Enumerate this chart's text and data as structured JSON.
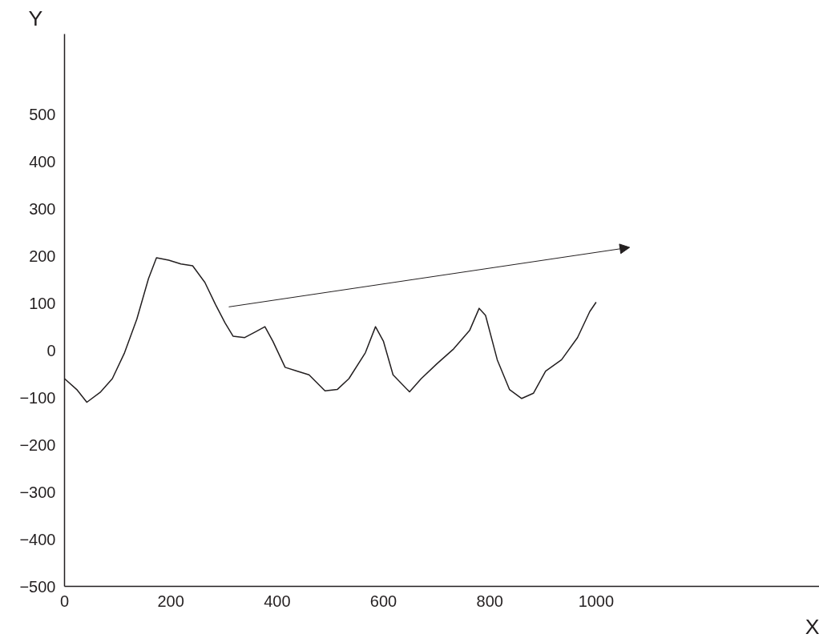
{
  "chart_data": {
    "type": "line",
    "xlabel": "X",
    "ylabel": "Y",
    "x": [
      0,
      23,
      42,
      68,
      90,
      113,
      136,
      158,
      173,
      196,
      219,
      241,
      264,
      284,
      302,
      317,
      339,
      359,
      377,
      392,
      415,
      437,
      460,
      490,
      513,
      535,
      566,
      585,
      600,
      618,
      649,
      671,
      701,
      732,
      762,
      780,
      792,
      814,
      837,
      860,
      882,
      905,
      935,
      965,
      988,
      1000
    ],
    "series": [
      {
        "color": "#231f20",
        "values": [
          -60,
          -83,
          -110,
          -88,
          -60,
          -5,
          66,
          152,
          196,
          191,
          183,
          179,
          144,
          97,
          58,
          30,
          27,
          39,
          50,
          19,
          -36,
          -44,
          -52,
          -86,
          -83,
          -60,
          -5,
          50,
          19,
          -52,
          -88,
          -60,
          -28,
          3,
          42,
          89,
          74,
          -20,
          -83,
          -102,
          -91,
          -44,
          -20,
          27,
          82,
          102
        ]
      }
    ],
    "xlim": [
      0,
      1420
    ],
    "ylim": [
      -500,
      670
    ],
    "xticks": [
      0,
      200,
      400,
      600,
      800,
      1000
    ],
    "yticks": [
      -500,
      -400,
      -300,
      -200,
      -100,
      0,
      100,
      200,
      300,
      400,
      500
    ],
    "grid": false,
    "marker": "none",
    "line_style": "solid"
  }
}
